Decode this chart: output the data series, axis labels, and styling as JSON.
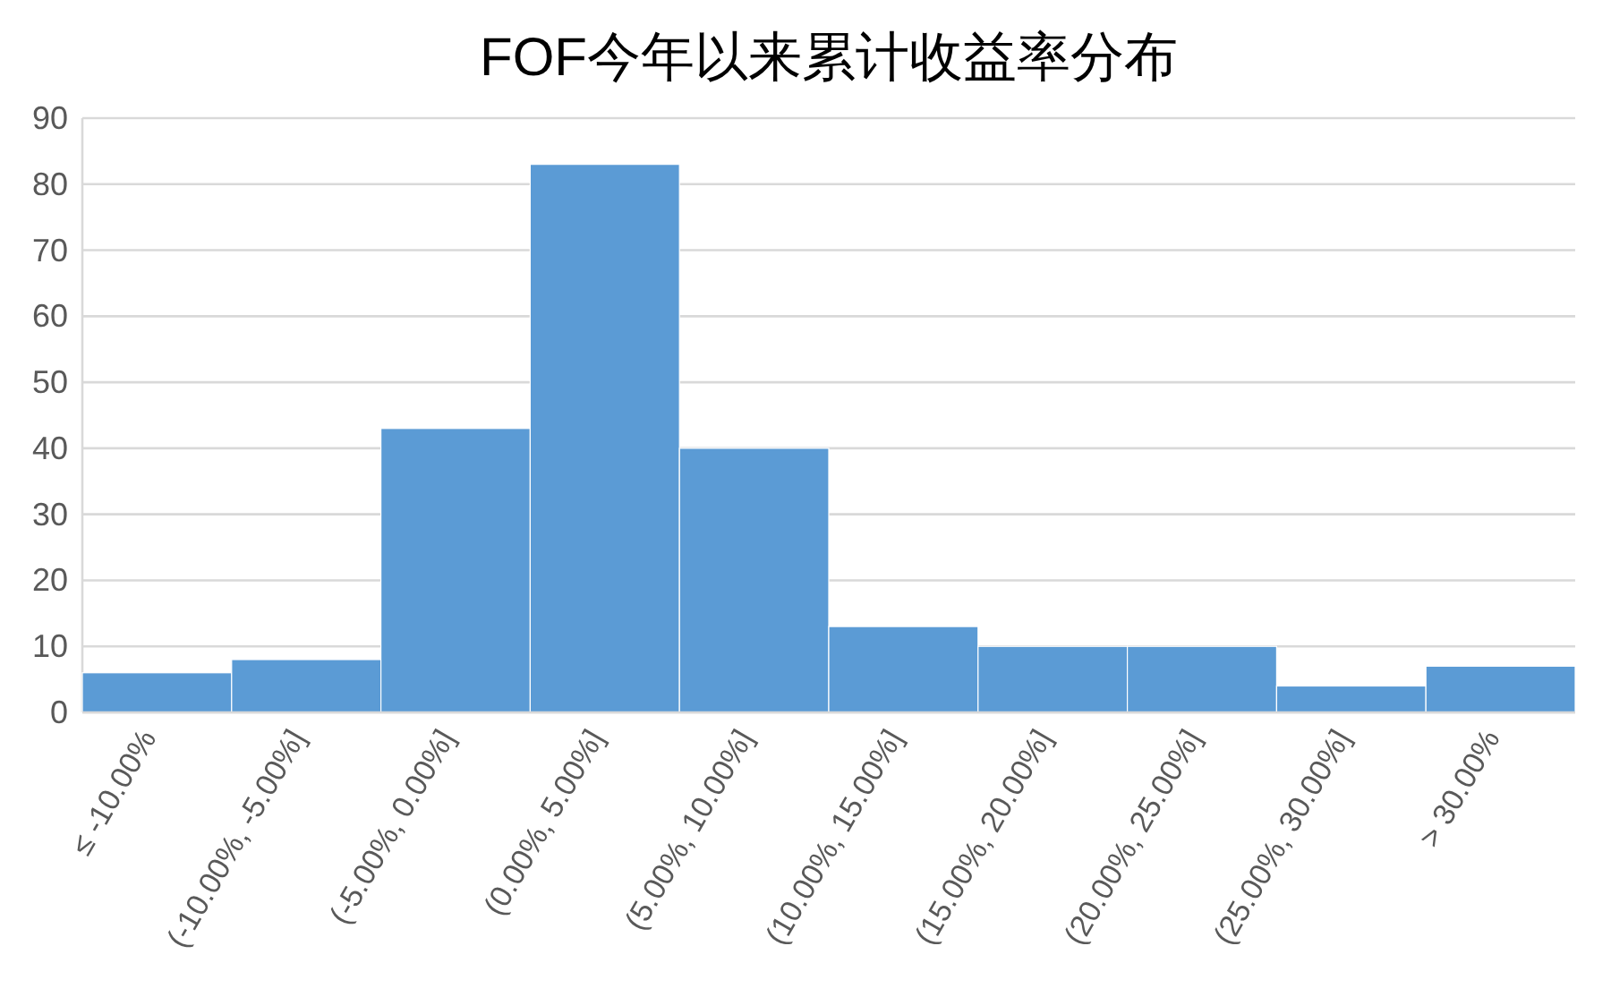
{
  "chart_data": {
    "type": "bar",
    "title": "FOF今年以来累计收益率分布",
    "categories": [
      "≤ -10.00%",
      "(-10.00%, -5.00%]",
      "(-5.00%, 0.00%]",
      "(0.00%, 5.00%]",
      "(5.00%, 10.00%]",
      "(10.00%, 15.00%]",
      "(15.00%, 20.00%]",
      "(20.00%, 25.00%]",
      "(25.00%, 30.00%]",
      "> 30.00%"
    ],
    "values": [
      6,
      8,
      43,
      83,
      40,
      13,
      10,
      10,
      4,
      7
    ],
    "color": "#5b9bd5",
    "ylim": [
      0,
      90
    ],
    "yticks": [
      0,
      10,
      20,
      30,
      40,
      50,
      60,
      70,
      80,
      90
    ],
    "grid": "y"
  }
}
